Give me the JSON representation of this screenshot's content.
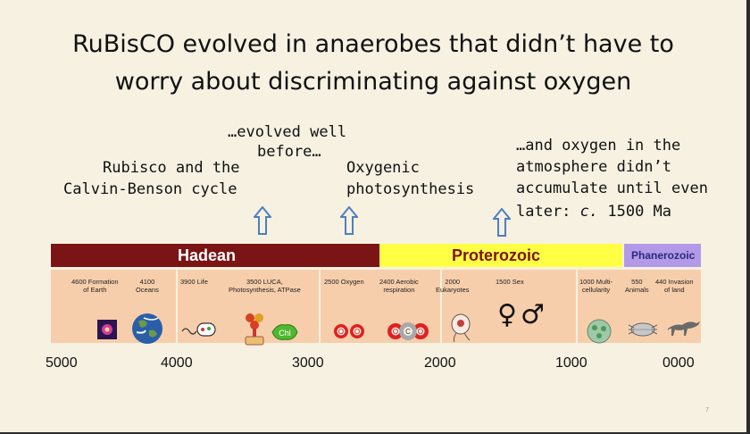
{
  "title": {
    "line1": "RuBisCO evolved in anaerobes that didn’t have to",
    "line2": "worry about discriminating against oxygen"
  },
  "notes": {
    "evolved_line1": "…evolved well",
    "evolved_line2": "before…",
    "rubisco_line1": "Rubisco and the",
    "rubisco_line2": "Calvin-Benson cycle",
    "oxygenic_line1": "Oxygenic",
    "oxygenic_line2": "photosynthesis",
    "oxygen_line1": "…and oxygen in the",
    "oxygen_line2": "atmosphere didn’t",
    "oxygen_line3": "accumulate until even",
    "oxygen_line4_pre": "later: ",
    "oxygen_line4_em": "c.",
    "oxygen_line4_post": " 1500 Ma"
  },
  "eras": {
    "hadean": "Hadean",
    "proterozoic": "Proterozoic",
    "phanerozoic": "Phanerozoic"
  },
  "colors": {
    "hadean": "#7b1414",
    "proterozoic": "#ffff44",
    "phanerozoic": "#b39ae8",
    "band": "#f7ceab",
    "arrow": "#4f7fbf"
  },
  "events": {
    "e4600_a": "4600 Formation",
    "e4600_b": "of Earth",
    "e4100_a": "4100",
    "e4100_b": "Oceans",
    "e3900": "3900 Life",
    "e3500_a": "3500 LUCA,",
    "e3500_b": "Photosynthesis, ATPase",
    "e2500": "2500 Oxygen",
    "e2400_a": "2400 Aerobic",
    "e2400_b": "respiration",
    "e2000_a": "2000",
    "e2000_b": "Eukaryotes",
    "e1500": "1500 Sex",
    "e1000_a": "1000 Multi-",
    "e1000_b": "cellularity",
    "e550_a": "550",
    "e550_b": "Animals",
    "e440_a": "440 Invasion",
    "e440_b": "of land"
  },
  "icons": {
    "chl": "Chl",
    "o1": "O",
    "o2": "O",
    "co_o1": "O",
    "co_c": "C",
    "co_o2": "O",
    "female": "♀",
    "male": "♂"
  },
  "axis": {
    "t5000": "5000",
    "t4000": "4000",
    "t3000": "3000",
    "t2000": "2000",
    "t1000": "1000",
    "t0000": "0000"
  },
  "page_number": "7"
}
